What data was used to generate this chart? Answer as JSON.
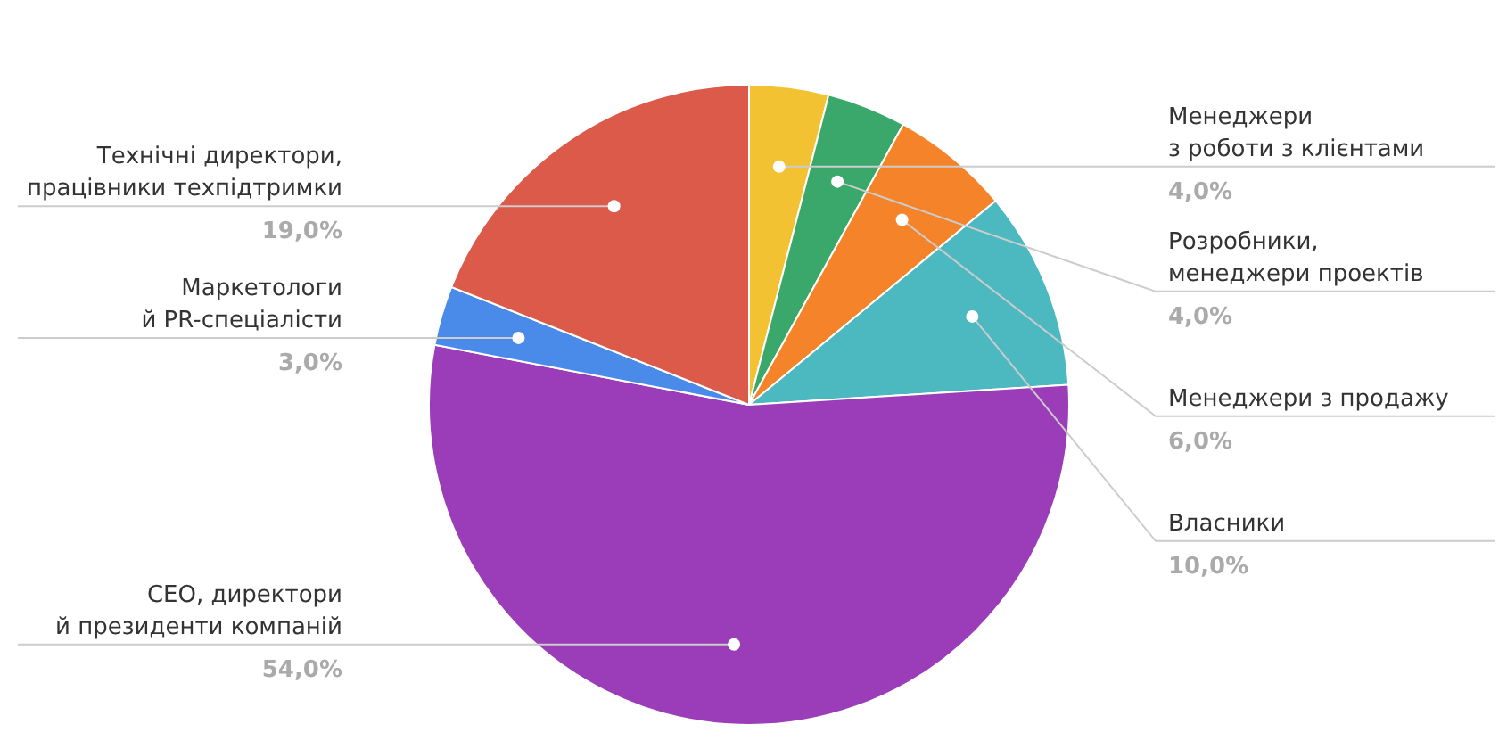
{
  "chart_data": {
    "type": "pie",
    "categories": [
      "Менеджери\nз роботи з клієнтами",
      "Розробники,\nменеджери проектів",
      "Менеджери з продажу",
      "Власники",
      "CEO, директори\nй президенти компаній",
      "Маркетологи\nй PR-спеціалісти",
      "Технічні директори,\nпрацівники техпідтримки"
    ],
    "values": [
      4,
      4,
      6,
      10,
      54,
      3,
      19
    ],
    "value_labels": [
      "4,0%",
      "4,0%",
      "6,0%",
      "10,0%",
      "54,0%",
      "3,0%",
      "19,0%"
    ],
    "colors": [
      "#f2c232",
      "#3aa86a",
      "#f5832a",
      "#4cb8c0",
      "#9b3db8",
      "#4a8ae8",
      "#dc5a4a"
    ],
    "legend": false
  }
}
